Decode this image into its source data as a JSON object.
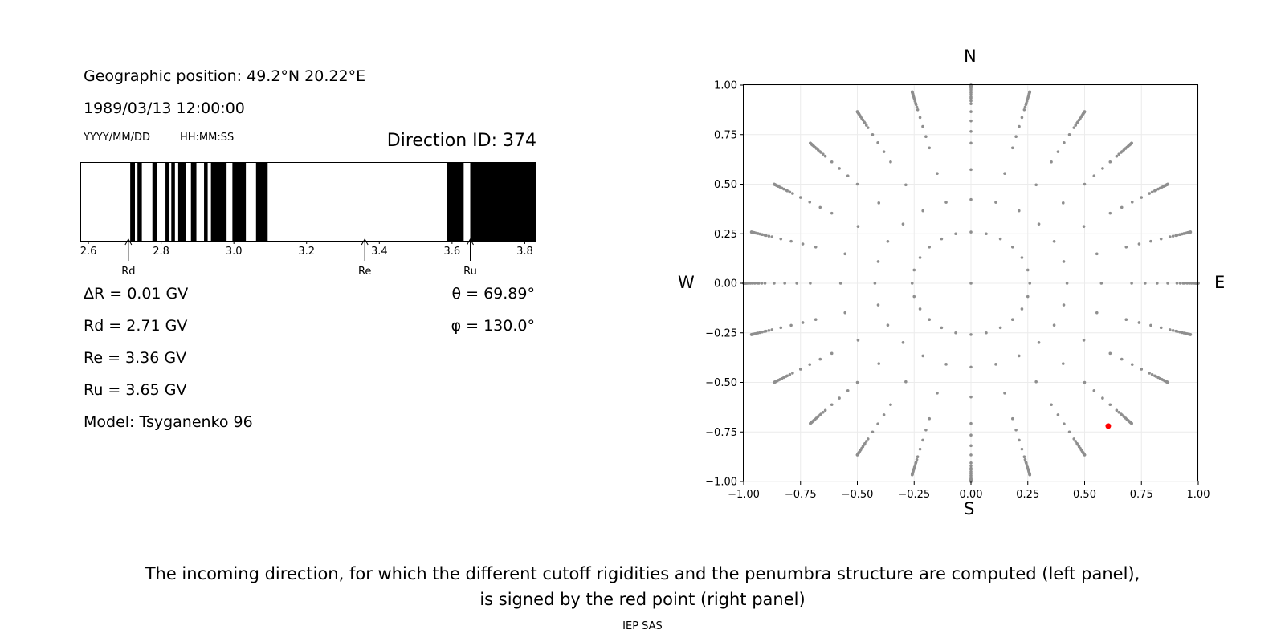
{
  "info": {
    "geo_position": "Geographic position: 49.2°N 20.22°E",
    "datetime": "1989/03/13 12:00:00",
    "date_format": "YYYY/MM/DD",
    "time_format": "HH:MM:SS",
    "direction_id": "Direction ID: 374"
  },
  "results": {
    "delta_r": "ΔR = 0.01 GV",
    "rd": "Rd = 2.71 GV",
    "re": "Re = 3.36 GV",
    "ru": "Ru = 3.65 GV",
    "model": "Model: Tsyganenko 96",
    "theta": "θ = 69.89°",
    "phi": "φ = 130.0°"
  },
  "chart_data": [
    {
      "type": "penumbra",
      "xlim": [
        2.58,
        3.83
      ],
      "x_ticks": [
        2.6,
        2.8,
        3.0,
        3.2,
        3.4,
        3.6,
        3.8
      ],
      "x_tick_labels": [
        "2.6",
        "2.8",
        "3.0",
        "3.2",
        "3.4",
        "3.6",
        "3.8"
      ],
      "forbidden_bands": [
        [
          2.715,
          2.728
        ],
        [
          2.735,
          2.747
        ],
        [
          2.776,
          2.789
        ],
        [
          2.812,
          2.823
        ],
        [
          2.828,
          2.838
        ],
        [
          2.847,
          2.868
        ],
        [
          2.882,
          2.897
        ],
        [
          2.918,
          2.928
        ],
        [
          2.937,
          2.98
        ],
        [
          2.996,
          3.033
        ],
        [
          3.061,
          3.093
        ],
        [
          3.587,
          3.632
        ],
        [
          3.65,
          3.83
        ]
      ],
      "markers": [
        {
          "label": "Rd",
          "value": 2.71
        },
        {
          "label": "Re",
          "value": 3.36
        },
        {
          "label": "Ru",
          "value": 3.65
        }
      ]
    },
    {
      "type": "scatter",
      "xlim": [
        -1.0,
        1.0
      ],
      "ylim": [
        -1.0,
        1.0
      ],
      "x_ticks": [
        -1.0,
        -0.75,
        -0.5,
        -0.25,
        0.0,
        0.25,
        0.5,
        0.75,
        1.0
      ],
      "x_tick_labels": [
        "−1.00",
        "−0.75",
        "−0.50",
        "−0.25",
        "0.00",
        "0.25",
        "0.50",
        "0.75",
        "1.00"
      ],
      "y_ticks": [
        1.0,
        0.75,
        0.5,
        0.25,
        0.0,
        -0.25,
        -0.5,
        -0.75,
        -1.0
      ],
      "y_tick_labels": [
        "1.00",
        "0.75",
        "0.50",
        "0.25",
        "0.00",
        "−0.25",
        "−0.50",
        "−0.75",
        "−1.00"
      ],
      "grid": true,
      "directions": {
        "azimuth_step_deg": 15,
        "zenith_angles_deg": [
          0,
          15,
          25,
          35,
          45,
          50,
          55,
          60,
          65,
          67,
          69,
          70,
          72,
          74,
          76,
          78,
          80,
          81,
          82,
          83,
          84,
          85,
          86,
          87,
          88,
          89,
          90
        ],
        "radius_rule": "sin(zenith)",
        "point_color": "#8f8f8f"
      },
      "selected_point": {
        "x": 0.604,
        "y": -0.72,
        "color": "#ff0000"
      },
      "compass": {
        "north": "N",
        "south": "S",
        "west": "W",
        "east": "E"
      }
    }
  ],
  "caption": {
    "line1": "The incoming direction, for which the different cutoff rigidities and the penumbra structure are computed (left panel),",
    "line2": "is signed by the red point (right panel)",
    "credit": "IEP SAS"
  }
}
